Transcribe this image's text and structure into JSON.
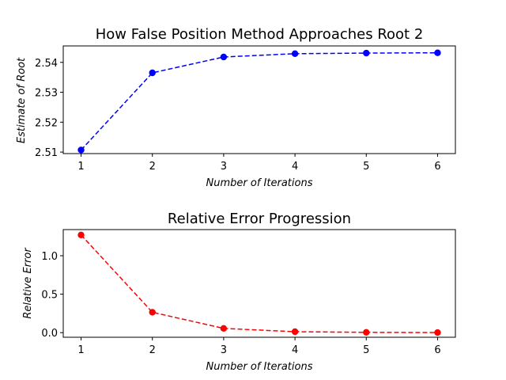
{
  "chart_data": [
    {
      "type": "line",
      "title": "How False Position Method Approaches Root 2",
      "xlabel": "Number of Iterations",
      "ylabel": "Estimate of Root",
      "x": [
        1,
        2,
        3,
        4,
        5,
        6
      ],
      "x_ticks": [
        "1",
        "2",
        "3",
        "4",
        "5",
        "6"
      ],
      "y_ticks": [
        "2.51",
        "2.52",
        "2.53",
        "2.54"
      ],
      "ylim": [
        2.5095,
        2.5455
      ],
      "xlim": [
        0.75,
        6.25
      ],
      "grid": false,
      "series": [
        {
          "values": [
            2.5107,
            2.5365,
            2.5418,
            2.5429,
            2.5431,
            2.5432
          ],
          "color": "#0000ff",
          "line_style": "dashed",
          "marker": "circle"
        }
      ]
    },
    {
      "type": "line",
      "title": "Relative Error Progression",
      "xlabel": "Number of Iterations",
      "ylabel": "Relative Error",
      "x": [
        1,
        2,
        3,
        4,
        5,
        6
      ],
      "x_ticks": [
        "1",
        "2",
        "3",
        "4",
        "5",
        "6"
      ],
      "y_ticks": [
        "0.0",
        "0.5",
        "1.0"
      ],
      "ylim": [
        -0.06,
        1.34
      ],
      "xlim": [
        0.75,
        6.25
      ],
      "grid": false,
      "series": [
        {
          "values": [
            1.27,
            0.265,
            0.055,
            0.012,
            0.004,
            0.001
          ],
          "color": "#ff0000",
          "line_style": "dashed",
          "marker": "circle"
        }
      ]
    }
  ]
}
